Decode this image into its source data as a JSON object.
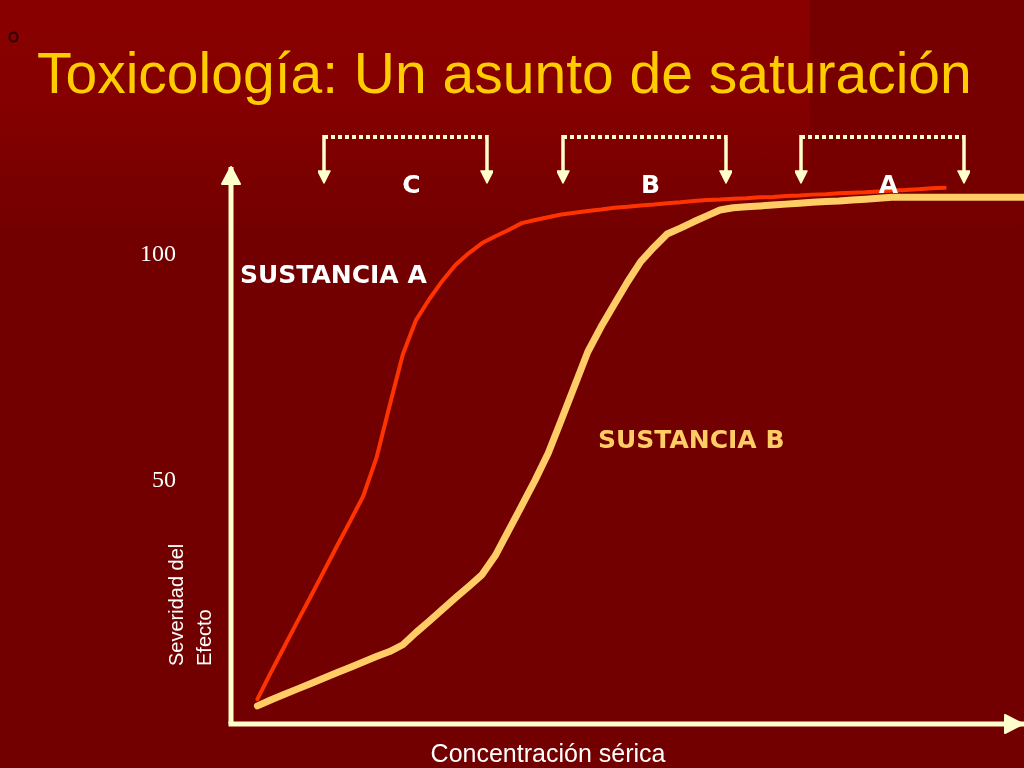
{
  "chart_data": {
    "type": "line",
    "title": "Toxicología: Un asunto de saturación",
    "xlabel": "Concentración sérica",
    "ylabel": "Severidad del Efecto",
    "categories": [
      null,
      null,
      null,
      null,
      null,
      null,
      null,
      null,
      null,
      null,
      null,
      null,
      null,
      null,
      null,
      null,
      null,
      null,
      null,
      null,
      null,
      null,
      null,
      null,
      null,
      null,
      null,
      null,
      null,
      null,
      null,
      null,
      null,
      null,
      null,
      null,
      null,
      null,
      null,
      null,
      null,
      null,
      null,
      null,
      null,
      null,
      null,
      null,
      null,
      null,
      null,
      null,
      null,
      null,
      null,
      null,
      null,
      null,
      null,
      null,
      null
    ],
    "series": [
      {
        "name": "SUSTANCIA A",
        "color": "#ff3300",
        "values": [
          null,
          null,
          1.5,
          7.3,
          12.9,
          18.5,
          24,
          29.6,
          35.2,
          40.7,
          46.3,
          54.7,
          66.3,
          77.6,
          85.2,
          89.8,
          93.9,
          97.4,
          100,
          102.2,
          103.7,
          105.1,
          106.6,
          107.3,
          107.9,
          108.5,
          108.9,
          109.3,
          109.6,
          110,
          110.2,
          110.5,
          110.7,
          111,
          111.2,
          111.5,
          111.7,
          111.8,
          112,
          112.1,
          112.3,
          112.4,
          112.6,
          112.7,
          112.9,
          113,
          113.2,
          113.3,
          113.4,
          113.6,
          113.8,
          113.9,
          114.1,
          114.3,
          114.4,
          null,
          null,
          null,
          null,
          null,
          null
        ]
      },
      {
        "name": "SUSTANCIA B",
        "color": "#ffcc66",
        "values": [
          null,
          null,
          0,
          1.3,
          2.5,
          3.7,
          4.9,
          6.1,
          7.3,
          8.5,
          9.7,
          10.9,
          12,
          13.5,
          16.2,
          18.7,
          21.3,
          23.9,
          26.4,
          29,
          33.2,
          38.7,
          44.2,
          49.8,
          55.8,
          63.2,
          70.7,
          78.2,
          83.7,
          88.7,
          93.6,
          98.1,
          101.3,
          104.2,
          105.5,
          106.9,
          108.2,
          109.5,
          110,
          110.2,
          110.4,
          110.6,
          110.8,
          111,
          111.2,
          111.4,
          111.5,
          111.7,
          111.9,
          112.1,
          112.3,
          112.3,
          112.3,
          112.3,
          112.3,
          112.3,
          112.3,
          112.3,
          112.3,
          112.3,
          112.3
        ]
      }
    ],
    "ylim": [
      -4,
      119
    ],
    "yticks": [
      50,
      100
    ],
    "tick_labels": "y",
    "grid": false,
    "legend": false,
    "marker": "none",
    "line_style": "solid",
    "annotations": [
      "C",
      "B",
      "A"
    ]
  }
}
